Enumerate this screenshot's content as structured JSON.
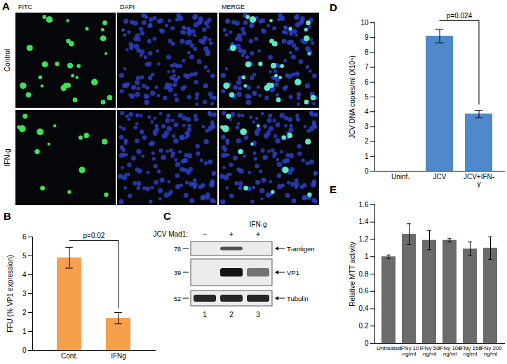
{
  "chart_data": [
    {
      "panel": "B",
      "type": "bar",
      "categories": [
        "Cont.",
        "IFNg"
      ],
      "values": [
        4.9,
        1.7
      ],
      "errors": [
        0.55,
        0.3
      ],
      "color": "#f6a04d",
      "ylabel": "FFU (% VP1 expression)",
      "ylim": [
        0,
        6
      ],
      "yticks": [
        0,
        1,
        2,
        3,
        4,
        5,
        6
      ],
      "annotations": [
        {
          "text": "p=0.02",
          "from": "Cont.",
          "to": "IFNg"
        }
      ]
    },
    {
      "panel": "D",
      "type": "bar",
      "categories": [
        "Uninf.",
        "JCV",
        "JCV+IFN-γ"
      ],
      "values": [
        0,
        9.1,
        3.85
      ],
      "errors": [
        0,
        0.45,
        0.25
      ],
      "color": "#4f89c9",
      "ylabel": "JCV DNA copies/ml (X10⁶)",
      "ylim": [
        0,
        10
      ],
      "yticks": [
        0,
        1,
        2,
        3,
        4,
        5,
        6,
        7,
        8,
        9,
        10
      ],
      "annotations": [
        {
          "text": "p=0.024",
          "from": "JCV",
          "to": "JCV+IFN-γ"
        }
      ]
    },
    {
      "panel": "E",
      "type": "bar",
      "categories": [
        "Untreated",
        "IFNγ 10 ng/ml",
        "IFNγ 50 ng/ml",
        "IFNγ 100 ng/ml",
        "IFNγ 150 ng/ml",
        "IFNγ 200 ng/ml"
      ],
      "values": [
        1.0,
        1.26,
        1.19,
        1.19,
        1.09,
        1.1
      ],
      "errors": [
        0.02,
        0.12,
        0.11,
        0.02,
        0.08,
        0.13
      ],
      "color": "#6b6b6b",
      "ylabel": "Relative MTT activity",
      "ylim": [
        0,
        1.6
      ],
      "yticks": [
        0,
        0.2,
        0.4,
        0.6,
        0.8,
        1,
        1.2,
        1.4,
        1.6
      ],
      "annotations": []
    }
  ],
  "panel_A": {
    "panel": "A",
    "columns": [
      "FITC",
      "DAPI",
      "MERGE"
    ],
    "rows": [
      "Control",
      "IFN-g"
    ],
    "green_cell_counts": [
      34,
      16
    ]
  },
  "panel_C": {
    "panel": "C",
    "header": "JCV Mad1:",
    "lanes": [
      "−",
      "+",
      "+"
    ],
    "treatment": {
      "label": "IFN-g",
      "lane": 3
    },
    "lane_numbers": [
      1,
      2,
      3
    ],
    "blots": [
      {
        "label": "T-antigen",
        "marker": 78,
        "intensity": [
          0,
          0.7,
          0
        ]
      },
      {
        "label": "VP1",
        "marker": 39,
        "intensity": [
          0,
          1,
          0.55
        ]
      },
      {
        "label": "Tubulin",
        "marker": 52,
        "intensity": [
          0.9,
          0.9,
          0.9
        ]
      }
    ]
  }
}
